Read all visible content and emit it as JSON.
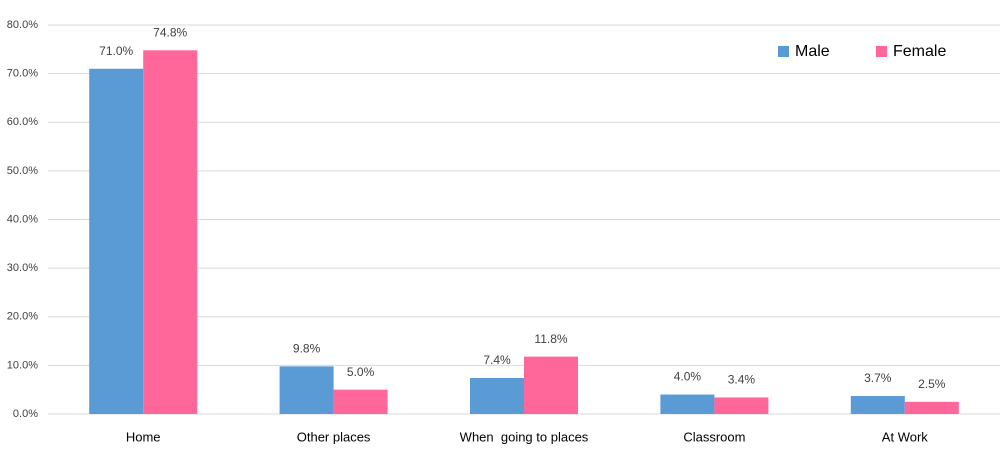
{
  "chart_data": {
    "type": "bar",
    "categories": [
      "Home",
      "Other places",
      "When  going to places",
      "Classroom",
      "At Work"
    ],
    "series": [
      {
        "name": "Male",
        "color": "#5b9bd5",
        "values": [
          71.0,
          9.8,
          7.4,
          4.0,
          3.7
        ],
        "value_labels": [
          "71.0%",
          "9.8%",
          "7.4%",
          "4.0%",
          "3.7%"
        ]
      },
      {
        "name": "Female",
        "color": "#ff6699",
        "values": [
          74.8,
          5.0,
          11.8,
          3.4,
          2.5
        ],
        "value_labels": [
          "74.8%",
          "5.0%",
          "11.8%",
          "3.4%",
          "2.5%"
        ]
      }
    ],
    "ylim": [
      0,
      80
    ],
    "yticks": [
      {
        "value": 0,
        "label": "0.0%"
      },
      {
        "value": 10,
        "label": "10.0%"
      },
      {
        "value": 20,
        "label": "20.0%"
      },
      {
        "value": 30,
        "label": "30.0%"
      },
      {
        "value": 40,
        "label": "40.0%"
      },
      {
        "value": 50,
        "label": "50.0%"
      },
      {
        "value": 60,
        "label": "60.0%"
      },
      {
        "value": 70,
        "label": "70.0%"
      },
      {
        "value": 80,
        "label": "80.0%"
      }
    ],
    "grid": true,
    "legend": "top-right"
  }
}
